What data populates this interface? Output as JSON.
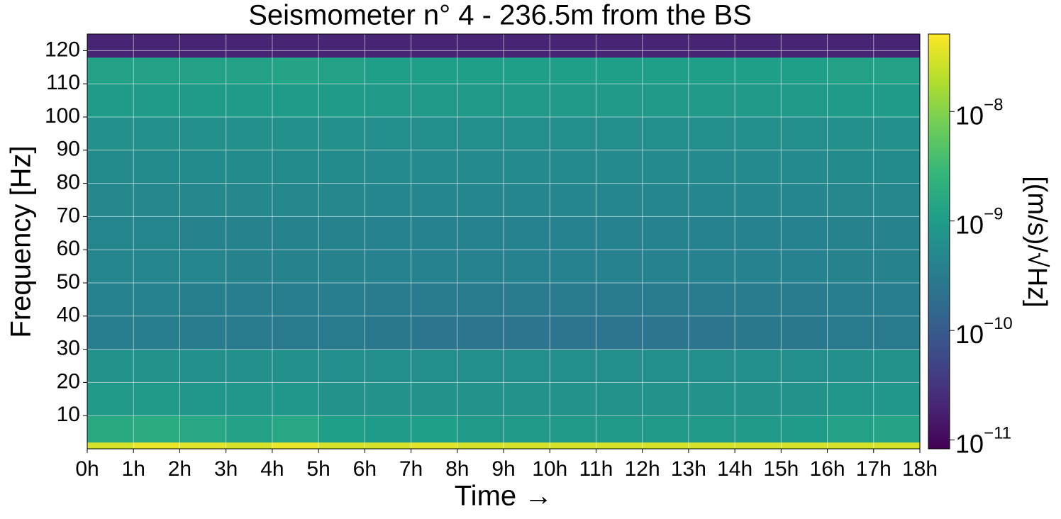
{
  "chart_data": {
    "type": "heatmap",
    "title": "Seismometer n° 4 - 236.5m from the BS",
    "x_label": "Time →",
    "y_label": "Frequency [Hz]",
    "colorbar_label": "[(m/s)/√Hz]",
    "colormap": "viridis",
    "color_scale": "log",
    "grid": true,
    "xlim": [
      0,
      18
    ],
    "ylim": [
      0,
      125
    ],
    "xticks": [
      {
        "value": 0,
        "label": "0h"
      },
      {
        "value": 1,
        "label": "1h"
      },
      {
        "value": 2,
        "label": "2h"
      },
      {
        "value": 3,
        "label": "3h"
      },
      {
        "value": 4,
        "label": "4h"
      },
      {
        "value": 5,
        "label": "5h"
      },
      {
        "value": 6,
        "label": "6h"
      },
      {
        "value": 7,
        "label": "7h"
      },
      {
        "value": 8,
        "label": "8h"
      },
      {
        "value": 9,
        "label": "9h"
      },
      {
        "value": 10,
        "label": "10h"
      },
      {
        "value": 11,
        "label": "11h"
      },
      {
        "value": 12,
        "label": "12h"
      },
      {
        "value": 13,
        "label": "13h"
      },
      {
        "value": 14,
        "label": "14h"
      },
      {
        "value": 15,
        "label": "15h"
      },
      {
        "value": 16,
        "label": "16h"
      },
      {
        "value": 17,
        "label": "17h"
      },
      {
        "value": 18,
        "label": "18h"
      }
    ],
    "yticks": [
      10,
      20,
      30,
      40,
      50,
      60,
      70,
      80,
      90,
      100,
      110,
      120
    ],
    "clim": [
      8.3e-12,
      5.1e-08
    ],
    "cticks": [
      {
        "value": 1e-11,
        "label": "10−11"
      },
      {
        "value": 1e-10,
        "label": "10−10"
      },
      {
        "value": 1e-09,
        "label": "10−9"
      },
      {
        "value": 1e-08,
        "label": "10−8"
      }
    ],
    "x_bins": [
      0,
      1,
      2,
      3,
      4,
      5,
      6,
      7,
      8,
      9,
      10,
      11,
      12,
      13,
      14,
      15,
      16,
      17,
      18
    ],
    "y_bins": [
      0,
      2,
      10,
      20,
      30,
      40,
      50,
      60,
      70,
      80,
      90,
      100,
      110,
      118,
      125
    ],
    "z": [
      [
        3e-08,
        4e-08,
        3.5e-08,
        3e-08,
        4e-08,
        3e-08,
        3e-08,
        3.5e-08,
        3e-08,
        3e-08,
        3e-08,
        3e-08,
        3e-08,
        3e-08,
        3e-08,
        3e-08,
        3e-08,
        3e-08
      ],
      [
        1.6e-09,
        1.8e-09,
        1.5e-09,
        1.2e-09,
        1.5e-09,
        1.1e-09,
        1e-09,
        1.1e-09,
        9e-10,
        9e-10,
        9e-10,
        9e-10,
        9e-10,
        9e-10,
        9e-10,
        1e-09,
        1.2e-09,
        1.3e-09
      ],
      [
        9e-10,
        9e-10,
        8e-10,
        8e-10,
        8e-10,
        7e-10,
        7e-10,
        7e-10,
        7e-10,
        7e-10,
        7e-10,
        7e-10,
        7e-10,
        7e-10,
        7e-10,
        7e-10,
        8e-10,
        8e-10
      ],
      [
        7e-10,
        7e-10,
        6.5e-10,
        6.5e-10,
        6.5e-10,
        6e-10,
        6e-10,
        6e-10,
        6e-10,
        6e-10,
        6e-10,
        6e-10,
        6e-10,
        6e-10,
        6e-10,
        6e-10,
        6.5e-10,
        7e-10
      ],
      [
        3.5e-10,
        3.5e-10,
        3.2e-10,
        3e-10,
        3e-10,
        3e-10,
        2.8e-10,
        2.6e-10,
        2.6e-10,
        2.6e-10,
        2.6e-10,
        2.6e-10,
        2.6e-10,
        2.6e-10,
        2.8e-10,
        2.8e-10,
        3e-10,
        3e-10
      ],
      [
        4e-10,
        4e-10,
        3.6e-10,
        3.4e-10,
        3.4e-10,
        3.4e-10,
        3.2e-10,
        3e-10,
        3e-10,
        3e-10,
        3e-10,
        3e-10,
        3e-10,
        3e-10,
        3.2e-10,
        3.2e-10,
        3.4e-10,
        3.4e-10
      ],
      [
        4.5e-10,
        4.5e-10,
        4.5e-10,
        4.2e-10,
        4.2e-10,
        4.2e-10,
        4e-10,
        4e-10,
        4e-10,
        4e-10,
        4e-10,
        4e-10,
        4e-10,
        4e-10,
        4e-10,
        4e-10,
        4.2e-10,
        4.2e-10
      ],
      [
        4.5e-10,
        4.5e-10,
        4.2e-10,
        4.2e-10,
        4.2e-10,
        4.2e-10,
        4e-10,
        4e-10,
        4e-10,
        4e-10,
        4e-10,
        4e-10,
        4e-10,
        4e-10,
        4e-10,
        4e-10,
        4.2e-10,
        4.2e-10
      ],
      [
        5e-10,
        5e-10,
        5e-10,
        5e-10,
        5e-10,
        5e-10,
        4.8e-10,
        4.8e-10,
        4.8e-10,
        4.8e-10,
        4.8e-10,
        4.8e-10,
        4.8e-10,
        4.8e-10,
        4.8e-10,
        4.8e-10,
        5e-10,
        5e-10
      ],
      [
        5.5e-10,
        5.5e-10,
        5.5e-10,
        5.5e-10,
        5.5e-10,
        5.5e-10,
        5.2e-10,
        5.2e-10,
        5.2e-10,
        5.2e-10,
        5.2e-10,
        5.2e-10,
        5.2e-10,
        5.2e-10,
        5.2e-10,
        5.2e-10,
        5.5e-10,
        5.5e-10
      ],
      [
        6.5e-10,
        6.5e-10,
        6.5e-10,
        6.5e-10,
        6.5e-10,
        6.5e-10,
        6e-10,
        6e-10,
        6e-10,
        6e-10,
        6e-10,
        6e-10,
        6e-10,
        6e-10,
        6e-10,
        6e-10,
        6.5e-10,
        6.5e-10
      ],
      [
        1e-09,
        1e-09,
        1e-09,
        1e-09,
        1e-09,
        1e-09,
        9e-10,
        9e-10,
        9e-10,
        9e-10,
        9e-10,
        9e-10,
        9e-10,
        9e-10,
        9e-10,
        9e-10,
        1e-09,
        1e-09
      ],
      [
        1.2e-09,
        1.2e-09,
        1.2e-09,
        1.2e-09,
        1.3e-09,
        1.2e-09,
        1.1e-09,
        1.1e-09,
        1.1e-09,
        1.1e-09,
        1.1e-09,
        1.1e-09,
        1.1e-09,
        1.1e-09,
        1.1e-09,
        1.1e-09,
        1.2e-09,
        1.2e-09
      ],
      [
        2e-11,
        2e-11,
        2e-11,
        2e-11,
        2e-11,
        2e-11,
        2e-11,
        2e-11,
        2e-11,
        2e-11,
        2e-11,
        2e-11,
        2e-11,
        2e-11,
        2e-11,
        2e-11,
        2e-11,
        2e-11
      ]
    ]
  }
}
